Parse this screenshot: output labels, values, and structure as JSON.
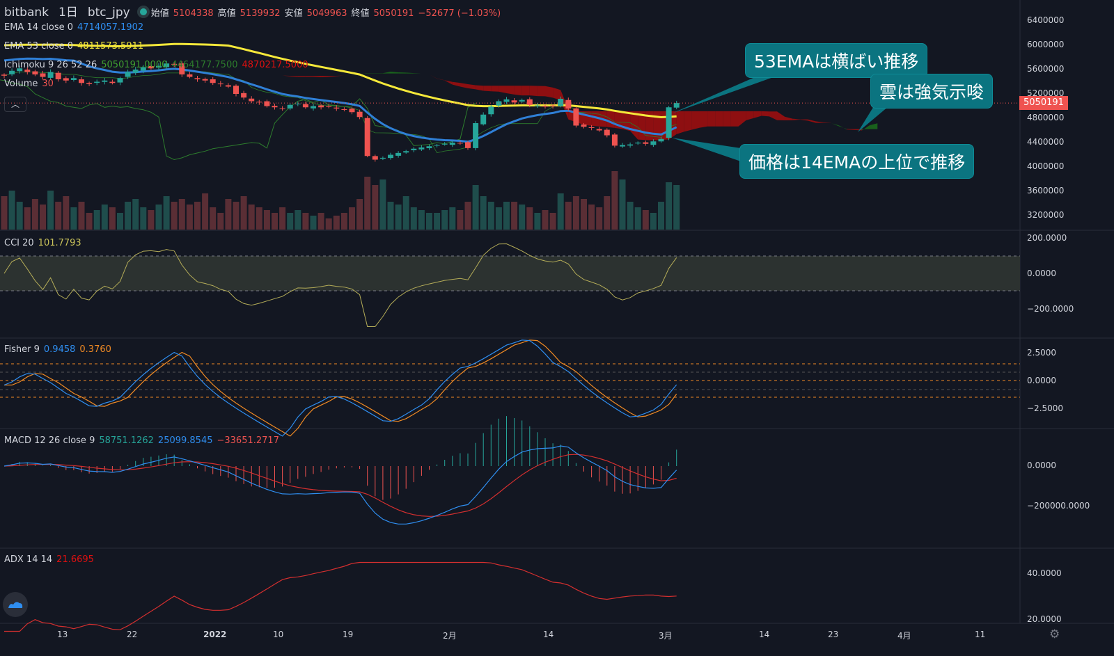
{
  "header": {
    "exchange": "bitbank",
    "interval": "1日",
    "symbol": "btc_jpy",
    "open_label": "始値",
    "open": "5104338",
    "high_label": "高値",
    "high": "5139932",
    "low_label": "安値",
    "low": "5049963",
    "close_label": "終値",
    "close": "5050191",
    "change": "−52677 (−1.03%)"
  },
  "legends": {
    "ema14": {
      "label": "EMA 14 close 0",
      "value": "4714057.1902"
    },
    "ema53": {
      "label": "EMA 53 close 0",
      "value": "4811573.5911"
    },
    "ichimoku": {
      "label": "Ichimoku 9 26 52 26",
      "v1": "5050191.0000",
      "v2": "4464177.7500",
      "v3": "4870217.5000"
    },
    "volume": {
      "label": "Volume",
      "value": "30"
    },
    "cci": {
      "label": "CCI 20",
      "value": "101.7793"
    },
    "fisher": {
      "label": "Fisher 9",
      "v1": "0.9458",
      "v2": "0.3760"
    },
    "macd": {
      "label": "MACD 12 26 close 9",
      "v1": "58751.1262",
      "v2": "25099.8545",
      "v3": "−33651.2717"
    },
    "adx": {
      "label": "ADX 14 14",
      "value": "21.6695"
    }
  },
  "annotations": [
    "53EMAは横ばい推移",
    "雲は強気示唆",
    "価格は14EMAの上位で推移"
  ],
  "price_tag": "5050191",
  "axes": {
    "price": [
      "6400000",
      "6000000",
      "5600000",
      "5200000",
      "4800000",
      "4400000",
      "4000000",
      "3600000",
      "3200000"
    ],
    "cci": [
      "200.0000",
      "0.0000",
      "−200.0000"
    ],
    "fisher": [
      "2.5000",
      "0.0000",
      "−2.5000"
    ],
    "macd": [
      "0.0000",
      "−200000.0000"
    ],
    "adx": [
      "40.0000",
      "20.0000"
    ],
    "time": [
      "13",
      "22",
      "2022",
      "10",
      "19",
      "2月",
      "14",
      "3月",
      "14",
      "23",
      "4月",
      "11"
    ]
  },
  "colors": {
    "up": "#26a69a",
    "down": "#ef5350",
    "ema14": "#2f7fd6",
    "ema53": "#f5e83a",
    "cloud_bear": "#a50e0e",
    "cloud_bull": "#1b6f1b",
    "annotation": "#0b7480"
  },
  "chart_data": {
    "type": "candlestick",
    "start_date": "2021-12-05",
    "closes_k": [
      5500,
      5580,
      5620,
      5560,
      5520,
      5480,
      5560,
      5440,
      5420,
      5460,
      5380,
      5360,
      5400,
      5420,
      5380,
      5460,
      5560,
      5600,
      5640,
      5620,
      5660,
      5700,
      5680,
      5520,
      5480,
      5440,
      5420,
      5380,
      5360,
      5320,
      5200,
      5140,
      5080,
      5060,
      5000,
      4980,
      4960,
      5020,
      5040,
      4980,
      5000,
      4980,
      4990,
      4960,
      4940,
      4900,
      4820,
      4180,
      4120,
      4150,
      4200,
      4230,
      4260,
      4300,
      4320,
      4340,
      4360,
      4380,
      4400,
      4390,
      4310,
      4720,
      4860,
      4990,
      5080,
      5110,
      5060,
      5100,
      5020,
      5010,
      4990,
      5000,
      5120,
      4960,
      4680,
      4660,
      4640,
      4600,
      4520,
      4350,
      4360,
      4370,
      4400,
      4380,
      4420,
      4460,
      4980,
      5050
    ],
    "volume_rel": [
      0.6,
      0.7,
      0.5,
      0.4,
      0.55,
      0.45,
      0.7,
      0.5,
      0.6,
      0.4,
      0.5,
      0.3,
      0.35,
      0.45,
      0.4,
      0.3,
      0.5,
      0.55,
      0.4,
      0.35,
      0.45,
      0.6,
      0.5,
      0.55,
      0.45,
      0.5,
      0.65,
      0.4,
      0.3,
      0.55,
      0.5,
      0.6,
      0.45,
      0.4,
      0.35,
      0.3,
      0.4,
      0.3,
      0.35,
      0.3,
      0.25,
      0.3,
      0.2,
      0.25,
      0.3,
      0.4,
      0.55,
      0.95,
      0.8,
      0.9,
      0.5,
      0.45,
      0.6,
      0.4,
      0.35,
      0.3,
      0.3,
      0.35,
      0.4,
      0.35,
      0.5,
      0.8,
      0.6,
      0.5,
      0.4,
      0.5,
      0.5,
      0.45,
      0.4,
      0.3,
      0.35,
      0.3,
      0.65,
      0.5,
      0.6,
      0.55,
      0.45,
      0.4,
      0.6,
      1.05,
      0.9,
      0.5,
      0.4,
      0.35,
      0.3,
      0.5,
      0.85,
      0.8
    ],
    "price_range": [
      3200000,
      6400000
    ]
  }
}
